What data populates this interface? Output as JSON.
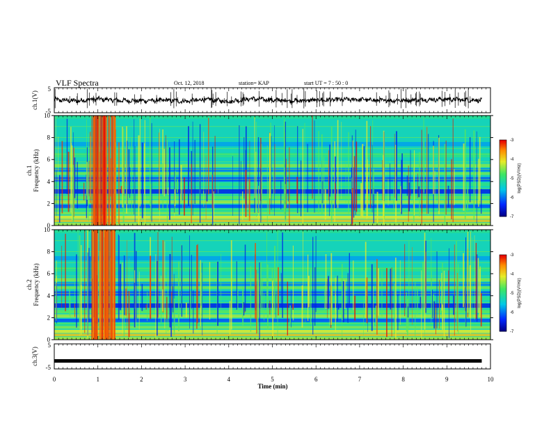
{
  "header": {
    "title": "VLF Spectra",
    "date": "Oct. 12, 2018",
    "station": "station= KAP",
    "start": "start  UT =   7 : 50 : 0"
  },
  "chart_data": [
    {
      "type": "line",
      "name": "ch1-waveform",
      "ylabel": "ch.1(V)",
      "ylim": [
        -5,
        5
      ],
      "yticks": [
        "5",
        "-5"
      ],
      "xlim": [
        0,
        10
      ],
      "x": [
        0,
        0.5,
        1,
        1.5,
        2,
        2.5,
        3,
        3.5,
        4,
        4.5,
        5,
        5.5,
        6,
        6.5,
        7,
        7.5,
        8,
        8.5,
        9,
        9.5,
        9.8
      ],
      "y": [
        0.2,
        -0.3,
        0.5,
        -0.1,
        -0.2,
        0.0,
        -0.4,
        0.3,
        -0.5,
        0.6,
        0.1,
        -0.2,
        0.0,
        0.2,
        0.3,
        -0.1,
        0.0,
        0.2,
        0.4,
        0.1,
        0.0
      ]
    },
    {
      "type": "heatmap",
      "name": "ch1-spectrogram",
      "ylabel": "ch.1\nFrequency  (kHz)",
      "xlim": [
        0,
        10
      ],
      "ylim": [
        0,
        10
      ],
      "yticks": [
        "0",
        "2",
        "4",
        "6",
        "8",
        "10"
      ],
      "colorbar": {
        "label": "log(PSD)(V²/Hz)",
        "range": [
          -7,
          -3
        ],
        "ticks": [
          "-3",
          "-4",
          "-5",
          "-6",
          "-7"
        ]
      }
    },
    {
      "type": "heatmap",
      "name": "ch2-spectrogram",
      "ylabel": "ch.2\nFrequency  (kHz)",
      "xlim": [
        0,
        10
      ],
      "ylim": [
        0,
        10
      ],
      "yticks": [
        "0",
        "2",
        "4",
        "6",
        "8",
        "10"
      ],
      "colorbar": {
        "label": "log(PSD)(V²/Hz)",
        "range": [
          -7,
          -3
        ],
        "ticks": [
          "-3",
          "-4",
          "-5",
          "-6",
          "-7"
        ]
      }
    },
    {
      "type": "line",
      "name": "ch3-waveform",
      "ylabel": "ch.3(V)",
      "ylim": [
        -5,
        5
      ],
      "yticks": [
        "5",
        "-5"
      ],
      "xlim": [
        0,
        10
      ],
      "x": [
        0,
        9.8
      ],
      "y": [
        -1.8,
        -1.8
      ]
    }
  ],
  "xaxis": {
    "label": "Time  (min)",
    "ticks": [
      "0",
      "1",
      "2",
      "3",
      "4",
      "5",
      "6",
      "7",
      "8",
      "9",
      "10"
    ]
  },
  "colors": {
    "background_spectrum": "#22c8d8",
    "line": "#000000"
  }
}
